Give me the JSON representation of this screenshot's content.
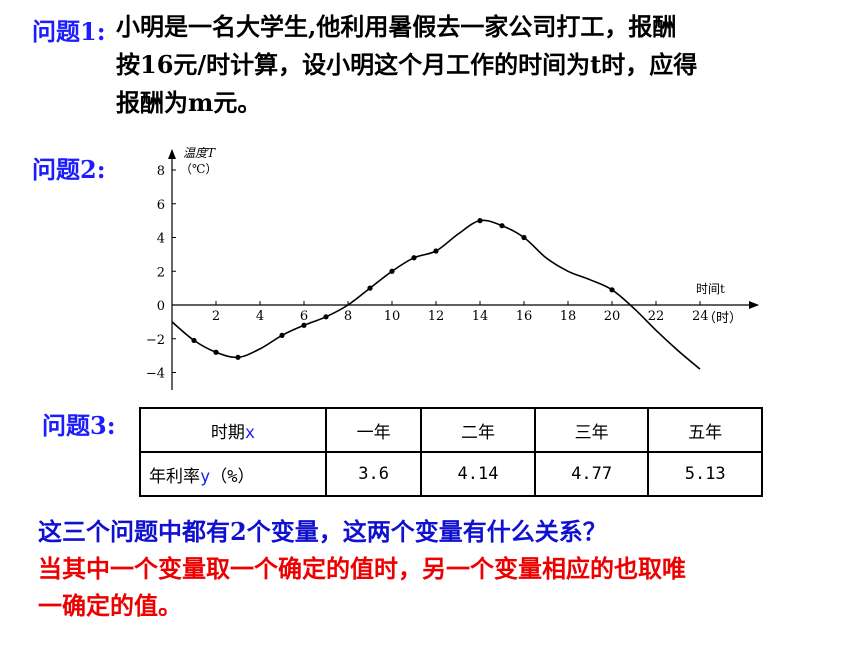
{
  "question1": {
    "label": "问题1:",
    "lines": [
      "小明是一名大学生,他利用暑假去一家公司打工，报酬",
      "按16元/时计算，设小明这个月工作的时间为t时，应得",
      "报酬为m元。"
    ]
  },
  "question2": {
    "label": "问题2:",
    "chart_data": {
      "type": "line",
      "ylabel": "温度T",
      "yunit": "（℃）",
      "xlabel": "时间t",
      "xunit": "（时）",
      "xlim": [
        0,
        24
      ],
      "ylim": [
        -4,
        8
      ],
      "xticks": [
        2,
        4,
        6,
        8,
        10,
        12,
        14,
        16,
        18,
        20,
        22,
        24
      ],
      "yticks": [
        -4,
        -2,
        0,
        2,
        4,
        6,
        8
      ],
      "grid": false,
      "curve": [
        {
          "x": 0,
          "y": -1.0
        },
        {
          "x": 1,
          "y": -2.1
        },
        {
          "x": 2,
          "y": -2.8
        },
        {
          "x": 3,
          "y": -3.1
        },
        {
          "x": 4,
          "y": -2.6
        },
        {
          "x": 5,
          "y": -1.8
        },
        {
          "x": 6,
          "y": -1.2
        },
        {
          "x": 7,
          "y": -0.7
        },
        {
          "x": 8,
          "y": 0.0
        },
        {
          "x": 9,
          "y": 1.0
        },
        {
          "x": 10,
          "y": 2.0
        },
        {
          "x": 11,
          "y": 2.8
        },
        {
          "x": 12,
          "y": 3.2
        },
        {
          "x": 13,
          "y": 4.2
        },
        {
          "x": 14,
          "y": 5.0
        },
        {
          "x": 15,
          "y": 4.7
        },
        {
          "x": 16,
          "y": 4.0
        },
        {
          "x": 17,
          "y": 2.8
        },
        {
          "x": 18,
          "y": 2.0
        },
        {
          "x": 19,
          "y": 1.5
        },
        {
          "x": 20,
          "y": 0.9
        },
        {
          "x": 21,
          "y": -0.2
        },
        {
          "x": 22,
          "y": -1.5
        },
        {
          "x": 23,
          "y": -2.7
        },
        {
          "x": 24,
          "y": -3.8
        }
      ],
      "points": [
        {
          "x": 1,
          "y": -2.1
        },
        {
          "x": 2,
          "y": -2.8
        },
        {
          "x": 3,
          "y": -3.1
        },
        {
          "x": 5,
          "y": -1.8
        },
        {
          "x": 6,
          "y": -1.2
        },
        {
          "x": 7,
          "y": -0.7
        },
        {
          "x": 9,
          "y": 1.0
        },
        {
          "x": 10,
          "y": 2.0
        },
        {
          "x": 11,
          "y": 2.8
        },
        {
          "x": 12,
          "y": 3.2
        },
        {
          "x": 14,
          "y": 5.0
        },
        {
          "x": 15,
          "y": 4.7
        },
        {
          "x": 16,
          "y": 4.0
        },
        {
          "x": 20,
          "y": 0.9
        }
      ]
    }
  },
  "question3": {
    "label": "问题3:",
    "table": {
      "header_label": "时期",
      "header_var": "x",
      "columns": [
        "一年",
        "二年",
        "三年",
        "五年"
      ],
      "row_label": "年利率",
      "row_var": "y",
      "row_unit": "（%）",
      "values": [
        "3.6",
        "4.14",
        "4.77",
        "5.13"
      ]
    }
  },
  "summary": {
    "question": "这三个问题中都有2个变量，这两个变量有什么关系？",
    "answer_lines": [
      "当其中一个变量取一个确定的值时，另一个变量相应的也取唯",
      "一确定的值。"
    ],
    "colors": {
      "question": "#1010d0",
      "answer": "#ee0000",
      "label": "#1c1cff"
    }
  }
}
